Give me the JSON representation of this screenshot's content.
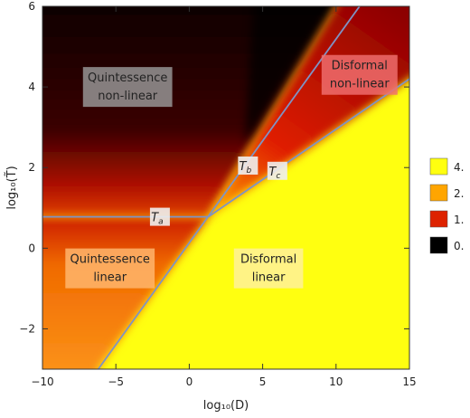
{
  "chart_data": {
    "type": "heatmap",
    "xlabel": "log₁₀(D)",
    "ylabel": "log₁₀(T̃)",
    "xlim": [
      -10,
      15
    ],
    "ylim": [
      -3,
      6
    ],
    "xticks": [
      -10,
      -5,
      0,
      5,
      10,
      15
    ],
    "yticks": [
      -2,
      0,
      2,
      4,
      6
    ],
    "grid": false,
    "legend": {
      "placement": "right",
      "entries": [
        {
          "label": "4.",
          "color": "#ffff10"
        },
        {
          "label": "2.",
          "color": "#ffa500"
        },
        {
          "label": "1.",
          "color": "#dd2200"
        },
        {
          "label": "0.",
          "color": "#000000"
        }
      ]
    },
    "boundary_lines": [
      {
        "name": "horizontal",
        "points": [
          [
            -10,
            0.78
          ],
          [
            1.3,
            0.78
          ]
        ]
      },
      {
        "name": "steep",
        "points": [
          [
            -6.2,
            -3.0
          ],
          [
            11.6,
            6.0
          ]
        ]
      },
      {
        "name": "shallow",
        "points": [
          [
            1.3,
            0.78
          ],
          [
            15,
            4.2
          ]
        ]
      }
    ],
    "regions": [
      {
        "label": [
          "Quintessence",
          "non-linear"
        ],
        "x": -4.2,
        "y": 4.0,
        "fill": "#9a9a9a"
      },
      {
        "label": [
          "Disformal",
          "non-linear"
        ],
        "x": 11.6,
        "y": 4.3,
        "fill": "#f07070"
      },
      {
        "label": [
          "Quintessence",
          "linear"
        ],
        "x": -5.4,
        "y": -0.5,
        "fill": "#ffb870"
      },
      {
        "label": [
          "Disformal",
          "linear"
        ],
        "x": 5.4,
        "y": -0.5,
        "fill": "#fff0a0"
      }
    ],
    "markers": [
      {
        "label": "T",
        "sub": "a",
        "x": -2.0,
        "y": 0.78
      },
      {
        "label": "T",
        "sub": "b",
        "x": 4.0,
        "y": 2.05
      },
      {
        "label": "T",
        "sub": "c",
        "x": 6.0,
        "y": 1.92
      }
    ]
  }
}
